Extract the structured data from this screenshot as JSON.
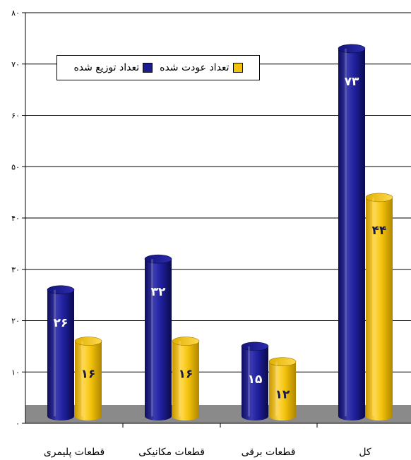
{
  "chart_data": {
    "type": "bar",
    "categories": [
      "قطعات پلیمری",
      "قطعات مکانیکی",
      "قطعات برقی",
      "کل"
    ],
    "series": [
      {
        "name": "تعداد توزیع شده",
        "values": [
          26,
          32,
          15,
          73
        ],
        "labels": [
          "۲۶",
          "۳۲",
          "۱۵",
          "۷۳"
        ],
        "color": "#1c1c8c"
      },
      {
        "name": "تعداد عودت شده",
        "values": [
          16,
          16,
          12,
          44
        ],
        "labels": [
          "۱۶",
          "۱۶",
          "۱۲",
          "۴۴"
        ],
        "color": "#f2c20a"
      }
    ],
    "ylim": [
      0,
      80
    ],
    "yticks": [
      0,
      10,
      20,
      30,
      40,
      50,
      60,
      70,
      80
    ],
    "ytick_labels": [
      "۰",
      "۱۰",
      "۲۰",
      "۳۰",
      "۴۰",
      "۵۰",
      "۶۰",
      "۷۰",
      "۸۰"
    ],
    "grid": true,
    "legend_position": "top-left",
    "floor_color": "#8a8a8a"
  }
}
